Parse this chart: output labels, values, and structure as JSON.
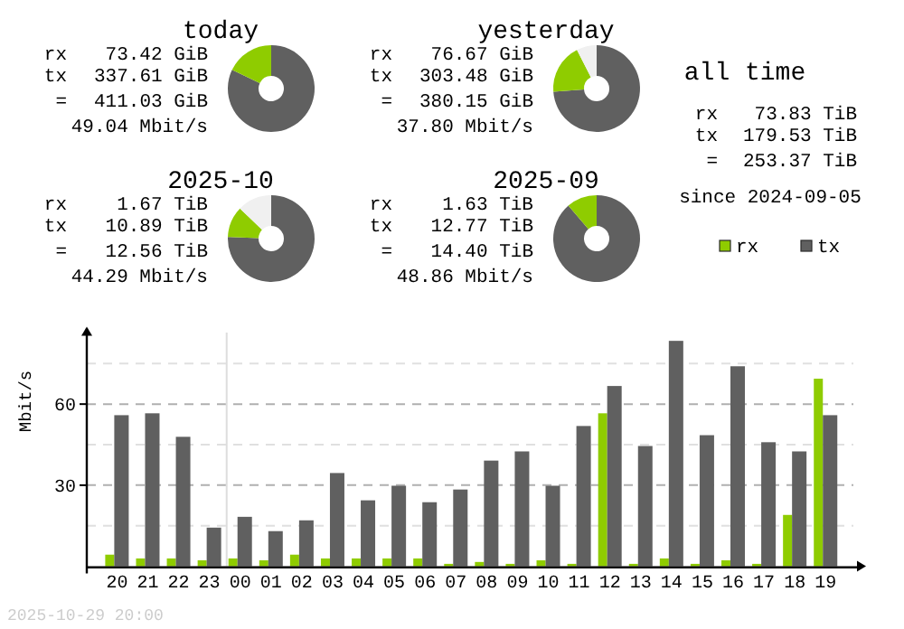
{
  "chart_data": [
    {
      "type": "donut",
      "title": "today",
      "categories": [
        null,
        null
      ],
      "values": [
        17.9,
        82.1
      ],
      "colors": [
        "#8fcc00",
        "#606060"
      ],
      "annotations": [
        "rx",
        "73.42 GiB",
        "tx",
        "337.61 GiB",
        "=",
        "411.03 GiB",
        "49.04 Mbit/s"
      ]
    },
    {
      "type": "donut",
      "title": "yesterday",
      "categories": [
        null,
        null,
        null
      ],
      "values": [
        18.7,
        73.8,
        7.5
      ],
      "colors": [
        "#8fcc00",
        "#606060",
        "#f0f0f0"
      ],
      "annotations": [
        "rx",
        "76.67 GiB",
        "tx",
        "303.48 GiB",
        "=",
        "380.15 GiB",
        "37.80 Mbit/s"
      ]
    },
    {
      "type": "other",
      "title": "all time",
      "annotations": [
        "rx",
        "73.83 TiB",
        "tx",
        "179.53 TiB",
        "=",
        "253.37 TiB",
        "since 2024-09-05"
      ]
    },
    {
      "type": "donut",
      "title": "2025-10",
      "categories": [
        null,
        null,
        null
      ],
      "values": [
        11.6,
        75.6,
        12.8
      ],
      "colors": [
        "#8fcc00",
        "#606060",
        "#f0f0f0"
      ],
      "annotations": [
        "rx",
        "1.67 TiB",
        "tx",
        "10.89 TiB",
        "=",
        "12.56 TiB",
        "44.29 Mbit/s"
      ]
    },
    {
      "type": "donut",
      "title": "2025-09",
      "categories": [
        null,
        null
      ],
      "values": [
        11.3,
        88.7
      ],
      "colors": [
        "#8fcc00",
        "#606060"
      ],
      "annotations": [
        "rx",
        "1.63 TiB",
        "tx",
        "12.77 TiB",
        "=",
        "14.40 TiB",
        "48.86 Mbit/s"
      ]
    },
    {
      "type": "bar",
      "ylabel": "Mbit/s",
      "categories": [
        "20",
        "21",
        "22",
        "23",
        "00",
        "01",
        "02",
        "03",
        "04",
        "05",
        "06",
        "07",
        "08",
        "09",
        "10",
        "11",
        "12",
        "13",
        "14",
        "15",
        "16",
        "17",
        "18",
        "19"
      ],
      "series": [
        {
          "name": "rx",
          "color": "#8fcc00",
          "values": [
            4.3,
            2.9,
            2.9,
            2.2,
            2.9,
            2.2,
            4.3,
            2.9,
            2.9,
            2.9,
            2.9,
            0.9,
            1.6,
            0.9,
            2.2,
            0.9,
            56.6,
            0.9,
            2.9,
            0.9,
            2.2,
            0.9,
            19.0,
            69.4
          ]
        },
        {
          "name": "tx",
          "color": "#606060",
          "values": [
            55.9,
            56.6,
            47.9,
            14.3,
            18.3,
            13.0,
            17.0,
            34.5,
            24.4,
            29.8,
            23.7,
            28.4,
            39.1,
            42.5,
            29.8,
            51.9,
            66.7,
            44.5,
            83.4,
            48.5,
            74.0,
            45.9,
            42.5,
            55.9
          ]
        }
      ],
      "ylim": [
        0,
        88
      ],
      "yticks": [
        {
          "value": 15,
          "label": null
        },
        30,
        {
          "value": 45,
          "label": null
        },
        60,
        {
          "value": 75,
          "label": null
        }
      ],
      "grid": "y",
      "legend": "top right",
      "ref_lines": [
        {
          "axis": "x",
          "value": "00",
          "color": "#dddddd"
        }
      ],
      "annotations": [
        "2025-10-29 20:00"
      ]
    }
  ]
}
